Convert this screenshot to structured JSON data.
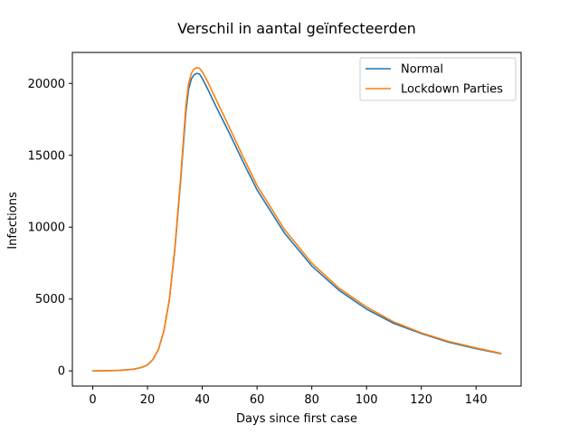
{
  "chart_data": {
    "type": "line",
    "title": "Verschil in aantal geïnfecteerden",
    "xlabel": "Days since first case",
    "ylabel": "Infections",
    "xlim": [
      -7.45,
      156.45
    ],
    "ylim": [
      -1055,
      22155
    ],
    "xticks": [
      0,
      20,
      40,
      60,
      80,
      100,
      120,
      140
    ],
    "yticks": [
      0,
      5000,
      10000,
      15000,
      20000
    ],
    "grid": false,
    "legend_position": "top-right",
    "series": [
      {
        "name": "Normal",
        "color": "#1f77b4",
        "x": [
          0,
          5,
          10,
          15,
          18,
          20,
          22,
          24,
          26,
          28,
          30,
          32,
          34,
          35,
          36,
          37,
          38,
          39,
          40,
          42,
          45,
          50,
          55,
          60,
          70,
          80,
          90,
          100,
          110,
          120,
          130,
          140,
          149
        ],
        "y": [
          0,
          10,
          40,
          120,
          250,
          420,
          800,
          1500,
          2800,
          5000,
          8500,
          13000,
          18000,
          19600,
          20300,
          20600,
          20700,
          20650,
          20350,
          19600,
          18400,
          16500,
          14500,
          12600,
          9600,
          7300,
          5600,
          4300,
          3300,
          2600,
          2000,
          1550,
          1200
        ]
      },
      {
        "name": "Lockdown Parties",
        "color": "#ff7f0e",
        "x": [
          0,
          5,
          10,
          15,
          18,
          20,
          22,
          24,
          26,
          28,
          30,
          32,
          34,
          35,
          36,
          37,
          38,
          39,
          40,
          42,
          45,
          50,
          55,
          60,
          70,
          80,
          90,
          100,
          110,
          120,
          130,
          140,
          149
        ],
        "y": [
          0,
          10,
          40,
          120,
          250,
          420,
          800,
          1500,
          2800,
          5000,
          8600,
          13200,
          18400,
          20000,
          20700,
          21000,
          21100,
          21050,
          20800,
          20100,
          18900,
          16900,
          14850,
          12900,
          9850,
          7500,
          5750,
          4450,
          3400,
          2650,
          2050,
          1600,
          1230
        ]
      }
    ]
  }
}
